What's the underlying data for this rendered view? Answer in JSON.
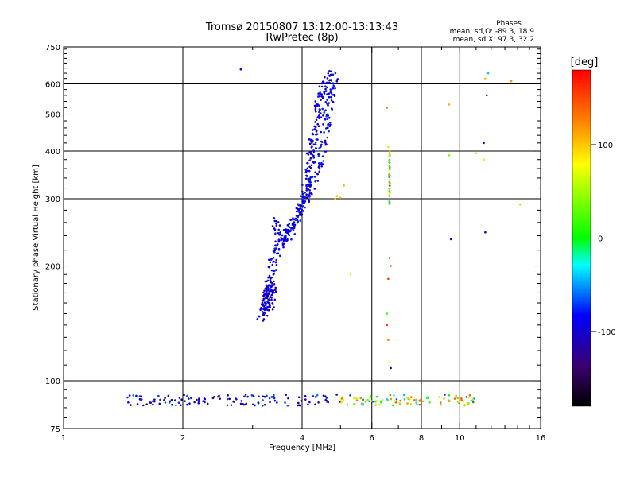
{
  "chart_data": {
    "type": "scatter",
    "title": "Tromsø 20150807 13:12:00-13:13:43",
    "subtitle": "RwPretec (8p)",
    "xlabel": "Frequency [MHz]",
    "ylabel": "Stationary phase Virtual Height [km]",
    "x_scale": "log",
    "y_scale": "log",
    "xlim": [
      1,
      16
    ],
    "ylim": [
      75,
      750
    ],
    "x_ticks": [
      1,
      2,
      4,
      6,
      8,
      10,
      16
    ],
    "x_tick_labels": [
      "1",
      "2",
      "4",
      "6",
      "8",
      "10",
      "16"
    ],
    "y_ticks": [
      75,
      100,
      200,
      300,
      400,
      500,
      600,
      750
    ],
    "y_tick_labels": [
      "75",
      "100",
      "200",
      "300",
      "400",
      "500",
      "600",
      "750"
    ],
    "grid": true,
    "phase_info": {
      "heading": "Phases",
      "line1": "mean, sd,O: -89.3, 18.9",
      "line2": "mean, sd,X:  97.3, 32.2"
    },
    "colorbar": {
      "label": "[deg]",
      "range": [
        -180,
        180
      ],
      "tick_values": [
        100,
        0,
        -100
      ],
      "tick_labels": [
        "100",
        "0",
        "-100"
      ]
    },
    "traces": [
      {
        "name": "o_trace_lower",
        "phase": -95,
        "points": [
          [
            3.2,
            150
          ],
          [
            3.25,
            160
          ],
          [
            3.3,
            175
          ],
          [
            3.35,
            190
          ],
          [
            3.38,
            205
          ],
          [
            3.45,
            220
          ],
          [
            3.55,
            232
          ],
          [
            3.7,
            245
          ],
          [
            3.85,
            262
          ],
          [
            3.95,
            280
          ],
          [
            4.05,
            305
          ],
          [
            4.12,
            330
          ],
          [
            4.18,
            360
          ],
          [
            4.22,
            390
          ],
          [
            4.28,
            420
          ],
          [
            4.33,
            455
          ],
          [
            4.38,
            490
          ],
          [
            4.43,
            530
          ],
          [
            4.5,
            570
          ],
          [
            4.6,
            605
          ],
          [
            4.75,
            635
          ]
        ]
      },
      {
        "name": "o_trace_upper_edge",
        "phase": -90,
        "points": [
          [
            3.4,
            265
          ],
          [
            3.5,
            245
          ],
          [
            3.65,
            238
          ],
          [
            3.8,
            255
          ],
          [
            3.95,
            278
          ],
          [
            4.1,
            300
          ],
          [
            4.22,
            320
          ],
          [
            4.35,
            350
          ],
          [
            4.45,
            385
          ],
          [
            4.55,
            430
          ],
          [
            4.62,
            480
          ],
          [
            4.68,
            530
          ],
          [
            4.75,
            580
          ],
          [
            4.85,
            625
          ]
        ]
      },
      {
        "name": "o_low_cluster",
        "phase": -100,
        "points": [
          [
            3.15,
            145
          ],
          [
            3.2,
            152
          ],
          [
            3.25,
            165
          ],
          [
            3.28,
            170
          ],
          [
            3.3,
            180
          ],
          [
            3.33,
            155
          ],
          [
            3.35,
            168
          ],
          [
            3.4,
            185
          ]
        ]
      },
      {
        "name": "sporadic_e",
        "phase": -95,
        "y_range": [
          86,
          92
        ],
        "x_range": [
          1.45,
          11
        ]
      },
      {
        "name": "interference_6.6MHz",
        "phase": 60,
        "x": 6.65,
        "y_range": [
          280,
          400
        ]
      }
    ],
    "isolated_points": [
      [
        2.8,
        655,
        -100
      ],
      [
        6.55,
        520,
        130
      ],
      [
        9.4,
        530,
        110
      ],
      [
        11.8,
        640,
        -40
      ],
      [
        11.6,
        620,
        100
      ],
      [
        13.5,
        610,
        120
      ],
      [
        11.7,
        560,
        -80
      ],
      [
        11.5,
        420,
        -110
      ],
      [
        11.0,
        395,
        95
      ],
      [
        11.5,
        380,
        90
      ],
      [
        9.4,
        390,
        40
      ],
      [
        6.6,
        410,
        60
      ],
      [
        5.1,
        325,
        110
      ],
      [
        5.3,
        190,
        70
      ],
      [
        9.5,
        235,
        -90
      ],
      [
        14.2,
        290,
        40
      ],
      [
        11.6,
        245,
        -120
      ],
      [
        6.65,
        210,
        150
      ],
      [
        6.7,
        200,
        140
      ],
      [
        6.6,
        185,
        155
      ],
      [
        6.55,
        150,
        10
      ],
      [
        6.55,
        140,
        160
      ],
      [
        6.6,
        128,
        130
      ],
      [
        6.65,
        112,
        80
      ],
      [
        6.7,
        108,
        -110
      ],
      [
        4.85,
        300,
        100
      ],
      [
        4.9,
        305,
        105
      ],
      [
        5.0,
        302,
        100
      ]
    ]
  }
}
